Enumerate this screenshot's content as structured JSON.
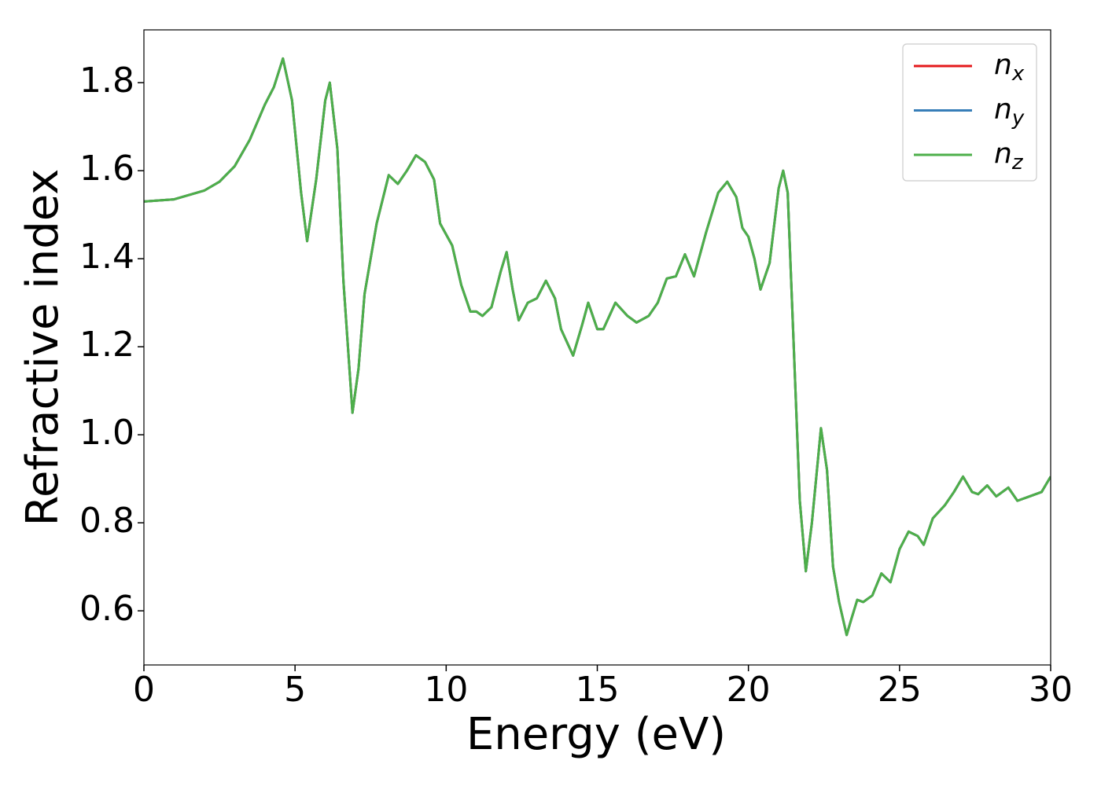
{
  "chart_data": {
    "type": "line",
    "xlabel": "Energy (eV)",
    "ylabel": "Refractive index",
    "x": [
      0,
      1,
      2,
      2.5,
      3,
      3.5,
      4,
      4.3,
      4.6,
      4.9,
      5.2,
      5.4,
      5.7,
      6.0,
      6.15,
      6.4,
      6.6,
      6.9,
      7.1,
      7.3,
      7.7,
      8.1,
      8.4,
      8.7,
      9.0,
      9.3,
      9.6,
      9.8,
      10.0,
      10.2,
      10.5,
      10.8,
      11.0,
      11.2,
      11.5,
      11.8,
      12.0,
      12.2,
      12.4,
      12.7,
      13.0,
      13.3,
      13.6,
      13.8,
      14.2,
      14.5,
      14.7,
      15.0,
      15.2,
      15.6,
      16.0,
      16.3,
      16.7,
      17.0,
      17.3,
      17.6,
      17.9,
      18.2,
      18.6,
      19.0,
      19.3,
      19.6,
      19.8,
      20.0,
      20.2,
      20.4,
      20.7,
      21.0,
      21.15,
      21.3,
      21.5,
      21.7,
      21.9,
      22.1,
      22.4,
      22.6,
      22.8,
      23.0,
      23.25,
      23.4,
      23.6,
      23.8,
      24.1,
      24.4,
      24.7,
      25.0,
      25.3,
      25.6,
      25.8,
      26.1,
      26.5,
      26.8,
      27.1,
      27.4,
      27.6,
      27.9,
      28.2,
      28.6,
      28.9,
      29.3,
      29.7,
      30.0
    ],
    "series": [
      {
        "name": "nx",
        "color": "#e41a1c",
        "values": [
          1.53,
          1.535,
          1.555,
          1.575,
          1.61,
          1.67,
          1.75,
          1.79,
          1.855,
          1.76,
          1.55,
          1.44,
          1.58,
          1.76,
          1.8,
          1.65,
          1.35,
          1.05,
          1.15,
          1.32,
          1.48,
          1.59,
          1.57,
          1.6,
          1.635,
          1.62,
          1.58,
          1.48,
          1.455,
          1.43,
          1.34,
          1.28,
          1.28,
          1.27,
          1.29,
          1.37,
          1.415,
          1.33,
          1.26,
          1.3,
          1.31,
          1.35,
          1.31,
          1.24,
          1.18,
          1.25,
          1.3,
          1.24,
          1.24,
          1.3,
          1.27,
          1.255,
          1.27,
          1.3,
          1.355,
          1.36,
          1.41,
          1.36,
          1.46,
          1.55,
          1.575,
          1.54,
          1.47,
          1.45,
          1.4,
          1.33,
          1.39,
          1.56,
          1.6,
          1.55,
          1.2,
          0.85,
          0.69,
          0.8,
          1.015,
          0.92,
          0.7,
          0.62,
          0.545,
          0.58,
          0.625,
          0.62,
          0.635,
          0.685,
          0.665,
          0.74,
          0.78,
          0.77,
          0.75,
          0.81,
          0.84,
          0.87,
          0.905,
          0.87,
          0.865,
          0.885,
          0.86,
          0.88,
          0.85,
          0.86,
          0.87,
          0.905
        ]
      },
      {
        "name": "ny",
        "color": "#377eb8",
        "values": [
          1.53,
          1.535,
          1.555,
          1.575,
          1.61,
          1.67,
          1.75,
          1.79,
          1.855,
          1.76,
          1.55,
          1.44,
          1.58,
          1.76,
          1.8,
          1.65,
          1.35,
          1.05,
          1.15,
          1.32,
          1.48,
          1.59,
          1.57,
          1.6,
          1.635,
          1.62,
          1.58,
          1.48,
          1.455,
          1.43,
          1.34,
          1.28,
          1.28,
          1.27,
          1.29,
          1.37,
          1.415,
          1.33,
          1.26,
          1.3,
          1.31,
          1.35,
          1.31,
          1.24,
          1.18,
          1.25,
          1.3,
          1.24,
          1.24,
          1.3,
          1.27,
          1.255,
          1.27,
          1.3,
          1.355,
          1.36,
          1.41,
          1.36,
          1.46,
          1.55,
          1.575,
          1.54,
          1.47,
          1.45,
          1.4,
          1.33,
          1.39,
          1.56,
          1.6,
          1.55,
          1.2,
          0.85,
          0.69,
          0.8,
          1.015,
          0.92,
          0.7,
          0.62,
          0.545,
          0.58,
          0.625,
          0.62,
          0.635,
          0.685,
          0.665,
          0.74,
          0.78,
          0.77,
          0.75,
          0.81,
          0.84,
          0.87,
          0.905,
          0.87,
          0.865,
          0.885,
          0.86,
          0.88,
          0.85,
          0.86,
          0.87,
          0.905
        ]
      },
      {
        "name": "nz",
        "color": "#4daf4a",
        "values": [
          1.53,
          1.535,
          1.555,
          1.575,
          1.61,
          1.67,
          1.75,
          1.79,
          1.855,
          1.76,
          1.55,
          1.44,
          1.58,
          1.76,
          1.8,
          1.65,
          1.35,
          1.05,
          1.15,
          1.32,
          1.48,
          1.59,
          1.57,
          1.6,
          1.635,
          1.62,
          1.58,
          1.48,
          1.455,
          1.43,
          1.34,
          1.28,
          1.28,
          1.27,
          1.29,
          1.37,
          1.415,
          1.33,
          1.26,
          1.3,
          1.31,
          1.35,
          1.31,
          1.24,
          1.18,
          1.25,
          1.3,
          1.24,
          1.24,
          1.3,
          1.27,
          1.255,
          1.27,
          1.3,
          1.355,
          1.36,
          1.41,
          1.36,
          1.46,
          1.55,
          1.575,
          1.54,
          1.47,
          1.45,
          1.4,
          1.33,
          1.39,
          1.56,
          1.6,
          1.55,
          1.2,
          0.85,
          0.69,
          0.8,
          1.015,
          0.92,
          0.7,
          0.62,
          0.545,
          0.58,
          0.625,
          0.62,
          0.635,
          0.685,
          0.665,
          0.74,
          0.78,
          0.77,
          0.75,
          0.81,
          0.84,
          0.87,
          0.905,
          0.87,
          0.865,
          0.885,
          0.86,
          0.88,
          0.85,
          0.86,
          0.87,
          0.905
        ]
      }
    ],
    "xlim": [
      0,
      30
    ],
    "xticks": [
      0,
      5,
      10,
      15,
      20,
      25,
      30
    ],
    "ylim": [
      0.477,
      1.92
    ],
    "yticks": [
      0.6,
      0.8,
      {
        "value": 1,
        "label": "1.0"
      },
      1.2,
      1.4,
      1.6,
      1.8
    ],
    "grid": false,
    "legend": "upper right"
  }
}
